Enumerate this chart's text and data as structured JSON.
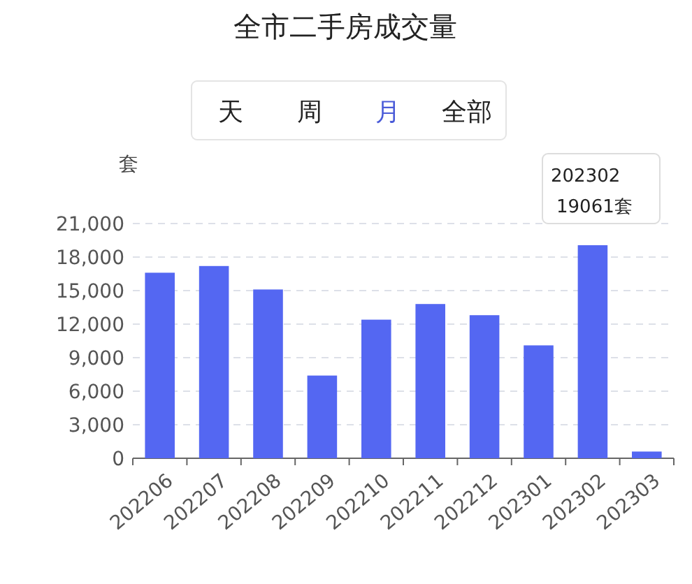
{
  "chart_data": {
    "type": "bar",
    "title": "全市二手房成交量",
    "ylabel": "套",
    "categories": [
      "202206",
      "202207",
      "202208",
      "202209",
      "202210",
      "202211",
      "202212",
      "202301",
      "202302",
      "202303"
    ],
    "values": [
      16600,
      17200,
      15100,
      7400,
      12400,
      13800,
      12800,
      10100,
      19061,
      600
    ],
    "color": "#5467f2",
    "ylim": [
      0,
      21000
    ],
    "yticks": [
      {
        "value": 0,
        "label": "0"
      },
      {
        "value": 3000,
        "label": "3,000"
      },
      {
        "value": 6000,
        "label": "6,000"
      },
      {
        "value": 9000,
        "label": "9,000"
      },
      {
        "value": 12000,
        "label": "12,000"
      },
      {
        "value": 15000,
        "label": "15,000"
      },
      {
        "value": 18000,
        "label": "18,000"
      },
      {
        "value": 21000,
        "label": "21,000"
      }
    ],
    "grid": "y",
    "annotations": [
      "天",
      "周",
      "月",
      "全部",
      "202302",
      "19061套"
    ]
  }
}
